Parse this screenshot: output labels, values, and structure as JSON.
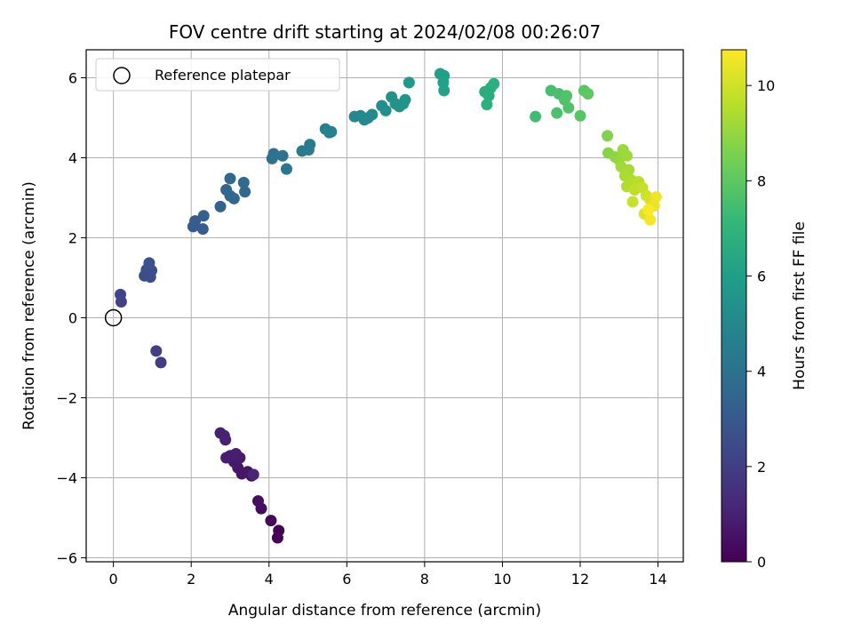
{
  "chart_data": {
    "type": "scatter",
    "title": "FOV centre drift starting at 2024/02/08 00:26:07",
    "xlabel": "Angular distance from reference (arcmin)",
    "ylabel": "Rotation from reference (arcmin)",
    "xlim": [
      -0.7,
      14.65
    ],
    "ylim": [
      -6.1,
      6.7
    ],
    "xticks": [
      0,
      2,
      4,
      6,
      8,
      10,
      12,
      14
    ],
    "yticks": [
      -6,
      -4,
      -2,
      0,
      2,
      4,
      6
    ],
    "yticklabels": [
      "−6",
      "−4",
      "−2",
      "0",
      "2",
      "4",
      "6"
    ],
    "grid": true,
    "legend_position": "top-left",
    "legend_label": "Reference platepar",
    "reference_point": {
      "x": 0,
      "y": 0
    },
    "colorbar": {
      "label": "Hours from first FF file",
      "min": 0,
      "max": 10.75,
      "ticks": [
        0,
        2,
        4,
        6,
        8,
        10
      ],
      "colormap": [
        "#440154",
        "#482878",
        "#3e4989",
        "#31688e",
        "#26828e",
        "#1f9e89",
        "#35b779",
        "#6ece58",
        "#b5de2b",
        "#fde725"
      ]
    },
    "points": [
      {
        "x": 4.22,
        "y": -5.5,
        "t": 0.05
      },
      {
        "x": 4.25,
        "y": -5.32,
        "t": 0.1
      },
      {
        "x": 4.05,
        "y": -5.07,
        "t": 0.2
      },
      {
        "x": 3.8,
        "y": -4.77,
        "t": 0.35
      },
      {
        "x": 3.72,
        "y": -4.58,
        "t": 0.45
      },
      {
        "x": 3.55,
        "y": -3.95,
        "t": 0.55
      },
      {
        "x": 3.45,
        "y": -3.85,
        "t": 0.6
      },
      {
        "x": 3.3,
        "y": -3.9,
        "t": 0.65
      },
      {
        "x": 3.2,
        "y": -3.75,
        "t": 0.7
      },
      {
        "x": 3.1,
        "y": -3.6,
        "t": 0.75
      },
      {
        "x": 3.25,
        "y": -3.5,
        "t": 0.8
      },
      {
        "x": 3.0,
        "y": -3.45,
        "t": 0.85
      },
      {
        "x": 2.9,
        "y": -3.5,
        "t": 0.9
      },
      {
        "x": 3.15,
        "y": -3.4,
        "t": 0.92
      },
      {
        "x": 2.88,
        "y": -3.05,
        "t": 0.95
      },
      {
        "x": 2.75,
        "y": -2.88,
        "t": 1.0
      },
      {
        "x": 2.85,
        "y": -2.95,
        "t": 1.05
      },
      {
        "x": 3.6,
        "y": -3.92,
        "t": 1.1
      },
      {
        "x": 1.22,
        "y": -1.12,
        "t": 1.95
      },
      {
        "x": 1.1,
        "y": -0.83,
        "t": 2.0
      },
      {
        "x": 0.2,
        "y": 0.4,
        "t": 2.2
      },
      {
        "x": 0.18,
        "y": 0.58,
        "t": 2.25
      },
      {
        "x": 0.8,
        "y": 1.05,
        "t": 2.55
      },
      {
        "x": 0.95,
        "y": 1.02,
        "t": 2.6
      },
      {
        "x": 0.85,
        "y": 1.2,
        "t": 2.62
      },
      {
        "x": 0.98,
        "y": 1.18,
        "t": 2.65
      },
      {
        "x": 0.92,
        "y": 1.37,
        "t": 2.7
      },
      {
        "x": 2.05,
        "y": 2.28,
        "t": 3.1
      },
      {
        "x": 2.1,
        "y": 2.42,
        "t": 3.15
      },
      {
        "x": 2.3,
        "y": 2.22,
        "t": 3.2
      },
      {
        "x": 2.32,
        "y": 2.55,
        "t": 3.25
      },
      {
        "x": 2.75,
        "y": 2.78,
        "t": 3.4
      },
      {
        "x": 2.9,
        "y": 3.2,
        "t": 3.5
      },
      {
        "x": 3.0,
        "y": 3.05,
        "t": 3.55
      },
      {
        "x": 3.1,
        "y": 2.98,
        "t": 3.6
      },
      {
        "x": 3.0,
        "y": 3.48,
        "t": 3.62
      },
      {
        "x": 3.38,
        "y": 3.15,
        "t": 3.65
      },
      {
        "x": 3.35,
        "y": 3.38,
        "t": 3.7
      },
      {
        "x": 4.08,
        "y": 3.98,
        "t": 4.0
      },
      {
        "x": 4.12,
        "y": 4.1,
        "t": 4.05
      },
      {
        "x": 4.35,
        "y": 4.05,
        "t": 4.1
      },
      {
        "x": 4.45,
        "y": 3.72,
        "t": 4.2
      },
      {
        "x": 4.85,
        "y": 4.17,
        "t": 4.4
      },
      {
        "x": 5.02,
        "y": 4.2,
        "t": 4.45
      },
      {
        "x": 5.05,
        "y": 4.33,
        "t": 4.5
      },
      {
        "x": 5.45,
        "y": 4.72,
        "t": 4.7
      },
      {
        "x": 5.6,
        "y": 4.65,
        "t": 4.75
      },
      {
        "x": 5.55,
        "y": 4.63,
        "t": 4.78
      },
      {
        "x": 6.2,
        "y": 5.03,
        "t": 5.0
      },
      {
        "x": 6.35,
        "y": 5.05,
        "t": 5.05
      },
      {
        "x": 6.45,
        "y": 4.95,
        "t": 5.1
      },
      {
        "x": 6.55,
        "y": 5.0,
        "t": 5.12
      },
      {
        "x": 6.65,
        "y": 5.08,
        "t": 5.15
      },
      {
        "x": 6.9,
        "y": 5.3,
        "t": 5.3
      },
      {
        "x": 7.0,
        "y": 5.18,
        "t": 5.35
      },
      {
        "x": 7.15,
        "y": 5.52,
        "t": 5.4
      },
      {
        "x": 7.25,
        "y": 5.35,
        "t": 5.45
      },
      {
        "x": 7.35,
        "y": 5.28,
        "t": 5.5
      },
      {
        "x": 7.45,
        "y": 5.35,
        "t": 5.55
      },
      {
        "x": 7.5,
        "y": 5.45,
        "t": 5.6
      },
      {
        "x": 7.6,
        "y": 5.88,
        "t": 5.7
      },
      {
        "x": 8.4,
        "y": 6.1,
        "t": 6.0
      },
      {
        "x": 8.5,
        "y": 6.05,
        "t": 6.05
      },
      {
        "x": 8.48,
        "y": 5.88,
        "t": 6.1
      },
      {
        "x": 8.5,
        "y": 5.68,
        "t": 6.15
      },
      {
        "x": 9.55,
        "y": 5.65,
        "t": 6.6
      },
      {
        "x": 9.65,
        "y": 5.55,
        "t": 6.65
      },
      {
        "x": 9.7,
        "y": 5.75,
        "t": 6.7
      },
      {
        "x": 9.78,
        "y": 5.85,
        "t": 6.75
      },
      {
        "x": 9.6,
        "y": 5.33,
        "t": 6.8
      },
      {
        "x": 10.85,
        "y": 5.03,
        "t": 7.4
      },
      {
        "x": 11.25,
        "y": 5.68,
        "t": 7.55
      },
      {
        "x": 11.45,
        "y": 5.6,
        "t": 7.6
      },
      {
        "x": 11.4,
        "y": 5.12,
        "t": 7.65
      },
      {
        "x": 11.6,
        "y": 5.45,
        "t": 7.7
      },
      {
        "x": 11.7,
        "y": 5.25,
        "t": 7.75
      },
      {
        "x": 11.65,
        "y": 5.55,
        "t": 7.78
      },
      {
        "x": 12.0,
        "y": 5.05,
        "t": 7.9
      },
      {
        "x": 12.1,
        "y": 5.68,
        "t": 7.95
      },
      {
        "x": 12.2,
        "y": 5.6,
        "t": 8.0
      },
      {
        "x": 12.7,
        "y": 4.55,
        "t": 8.7
      },
      {
        "x": 12.72,
        "y": 4.12,
        "t": 8.8
      },
      {
        "x": 12.9,
        "y": 4.02,
        "t": 8.9
      },
      {
        "x": 13.0,
        "y": 3.95,
        "t": 9.0
      },
      {
        "x": 13.1,
        "y": 4.2,
        "t": 9.1
      },
      {
        "x": 13.2,
        "y": 4.05,
        "t": 9.15
      },
      {
        "x": 13.05,
        "y": 3.78,
        "t": 9.2
      },
      {
        "x": 13.25,
        "y": 3.7,
        "t": 9.3
      },
      {
        "x": 13.15,
        "y": 3.55,
        "t": 9.35
      },
      {
        "x": 13.3,
        "y": 3.45,
        "t": 9.45
      },
      {
        "x": 13.2,
        "y": 3.28,
        "t": 9.5
      },
      {
        "x": 13.5,
        "y": 3.4,
        "t": 9.6
      },
      {
        "x": 13.4,
        "y": 3.2,
        "t": 9.7
      },
      {
        "x": 13.6,
        "y": 3.25,
        "t": 9.8
      },
      {
        "x": 13.35,
        "y": 2.9,
        "t": 9.85
      },
      {
        "x": 13.7,
        "y": 3.05,
        "t": 10.0
      },
      {
        "x": 13.8,
        "y": 2.95,
        "t": 10.1
      },
      {
        "x": 13.65,
        "y": 2.6,
        "t": 10.2
      },
      {
        "x": 13.9,
        "y": 2.8,
        "t": 10.4
      },
      {
        "x": 13.95,
        "y": 3.02,
        "t": 10.5
      },
      {
        "x": 13.8,
        "y": 2.45,
        "t": 10.6
      },
      {
        "x": 13.75,
        "y": 2.7,
        "t": 10.7
      }
    ]
  }
}
